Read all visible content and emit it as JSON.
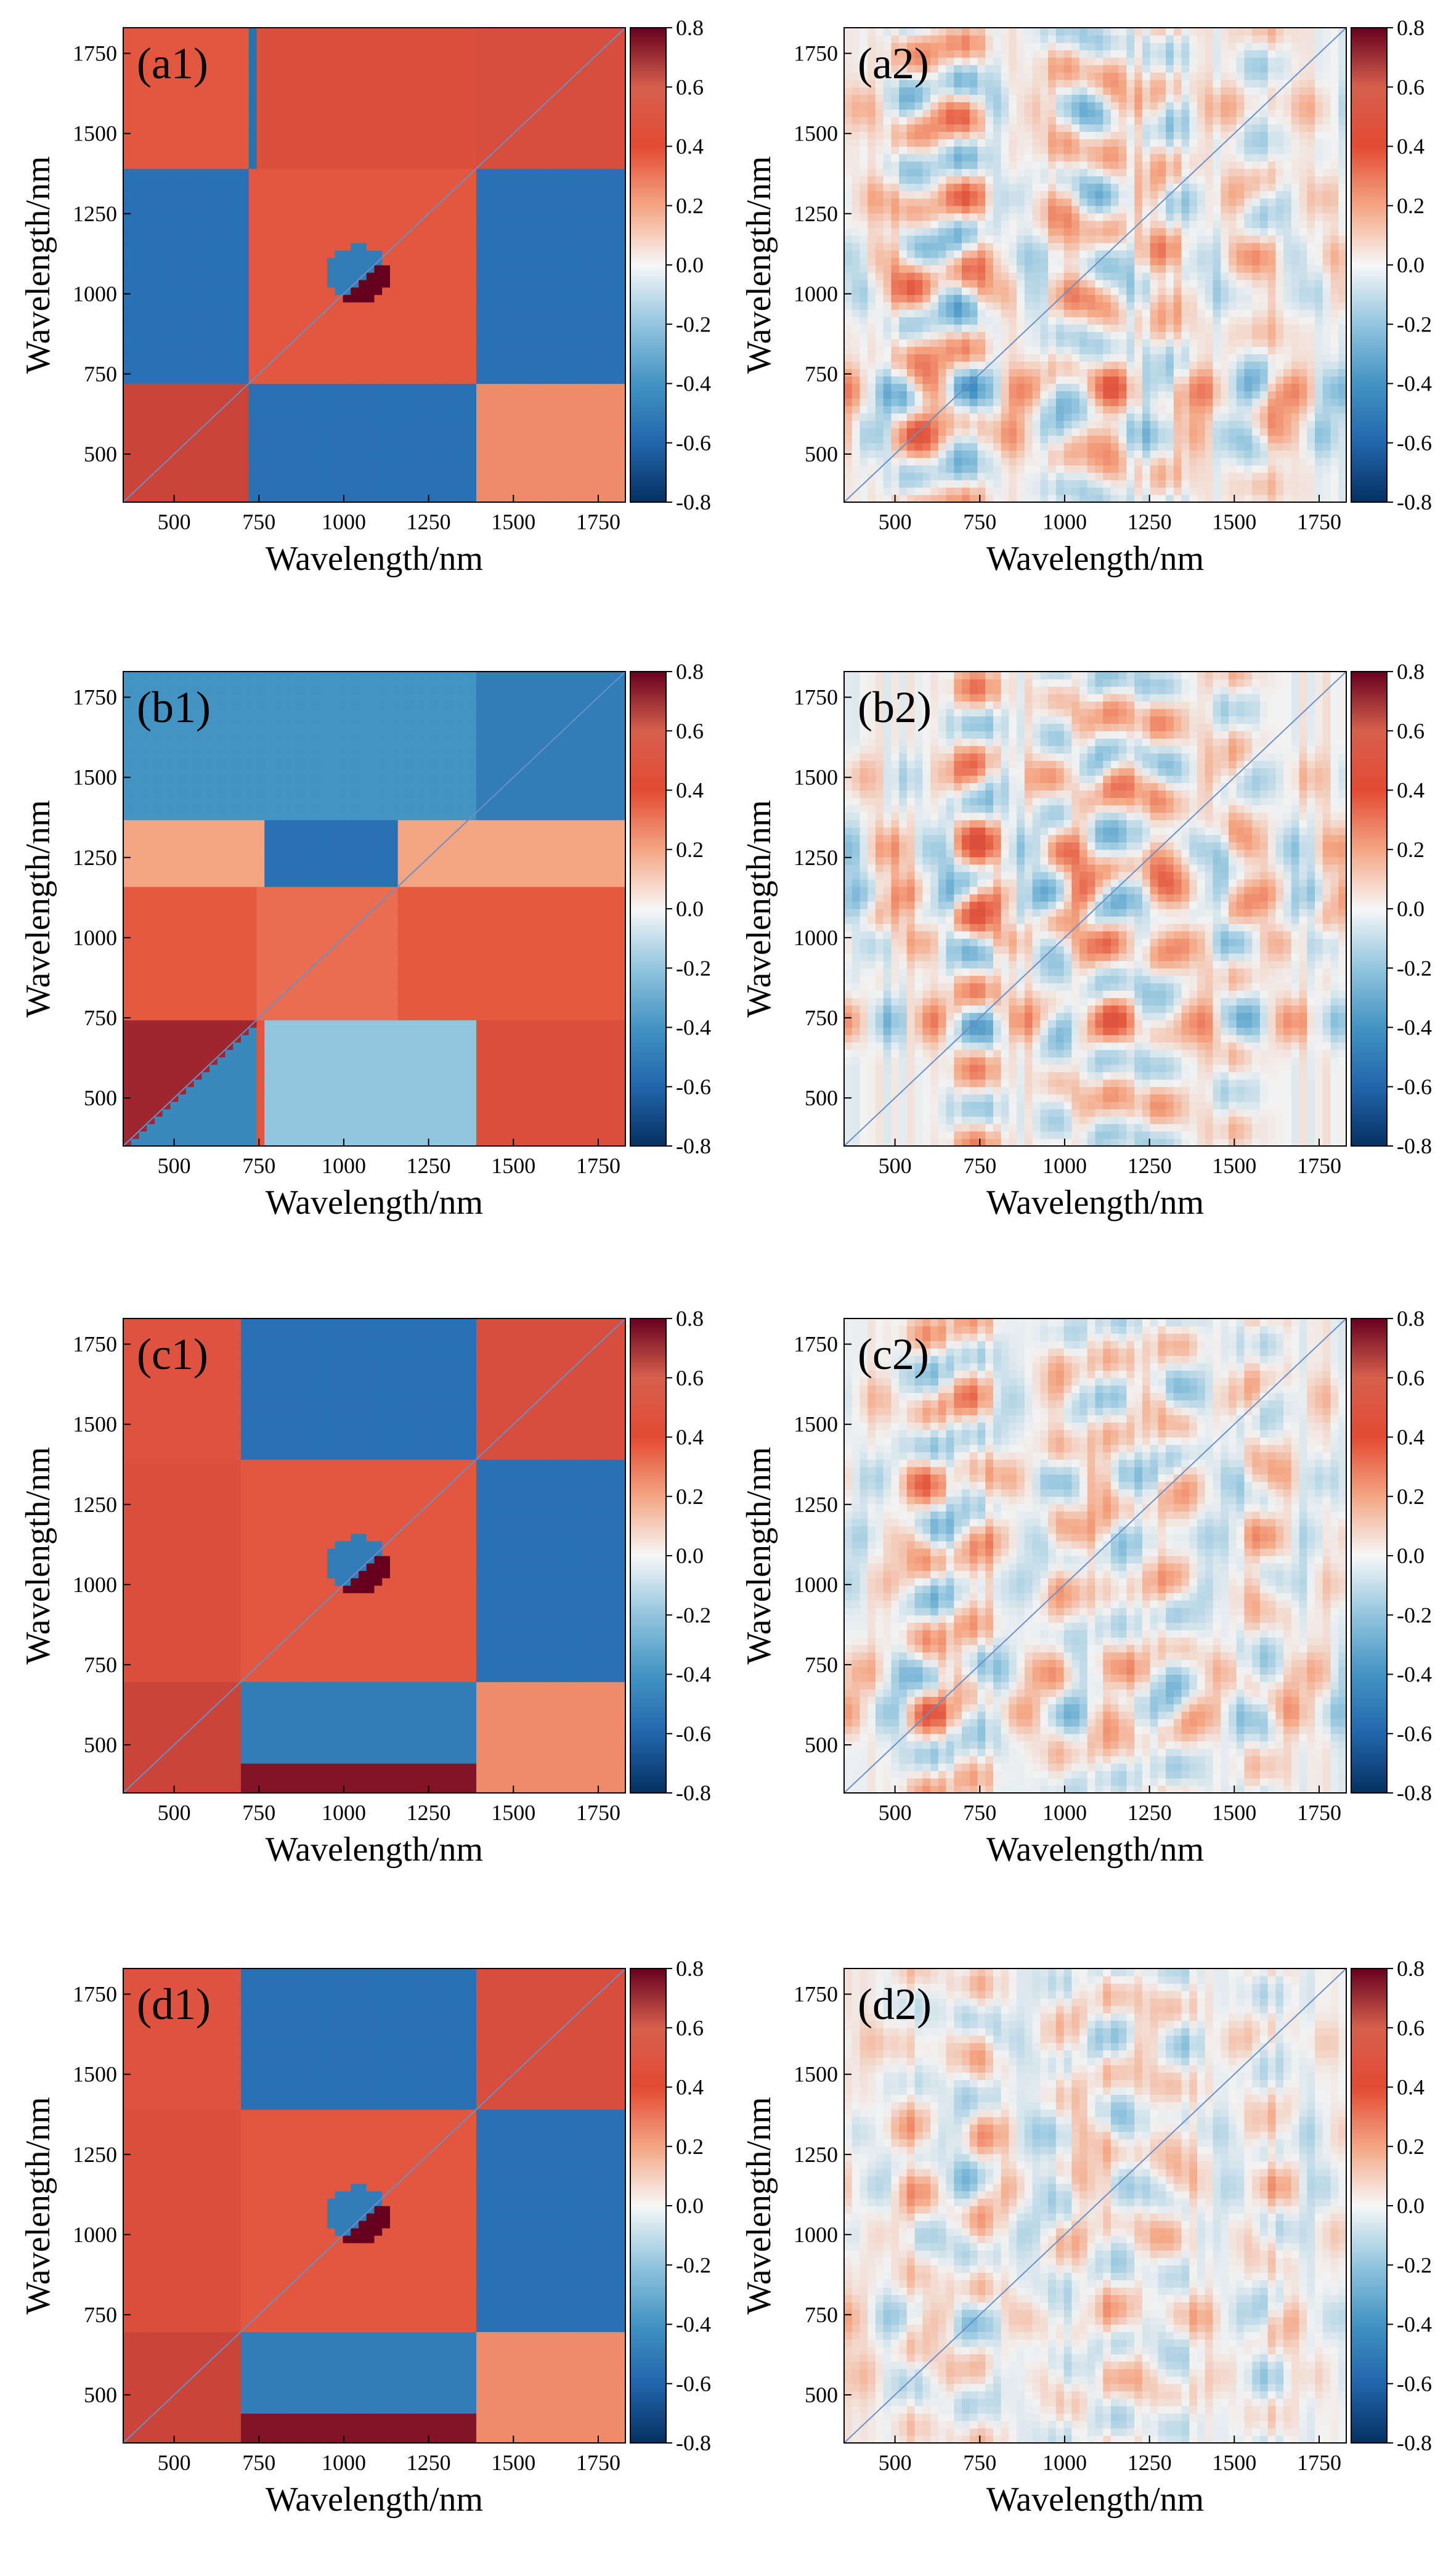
{
  "chart_data": [
    {
      "type": "heatmap",
      "panel_label": "(a1)",
      "xlabel": "Wavelength/nm",
      "ylabel": "Wavelength/nm",
      "xlim": [
        350,
        1830
      ],
      "ylim": [
        350,
        1830
      ],
      "xticks": [
        500,
        750,
        1000,
        1250,
        1500,
        1750
      ],
      "yticks": [
        500,
        750,
        1000,
        1250,
        1500,
        1750
      ],
      "colorbar": {
        "min": -0.8,
        "max": 0.8,
        "ticks": [
          "0.8",
          "0.6",
          "0.4",
          "0.2",
          "0.0",
          "-0.2",
          "-0.4",
          "-0.6",
          "-0.8"
        ]
      },
      "pattern": "sync-a",
      "blocks": [
        [
          0.5,
          1.0,
          350,
          720
        ],
        [
          -0.6,
          0.72,
          720,
          1380
        ],
        [
          0.3,
          0.92,
          1380,
          1830
        ]
      ]
    },
    {
      "type": "heatmap",
      "panel_label": "(a2)",
      "xlabel": "Wavelength/nm",
      "ylabel": "Wavelength/nm",
      "xlim": [
        350,
        1830
      ],
      "ylim": [
        350,
        1830
      ],
      "xticks": [
        500,
        750,
        1000,
        1250,
        1500,
        1750
      ],
      "yticks": [
        500,
        750,
        1000,
        1250,
        1500,
        1750
      ],
      "colorbar": {
        "min": -0.8,
        "max": 0.8,
        "ticks": [
          "0.8",
          "0.6",
          "0.4",
          "0.2",
          "0.0",
          "-0.2",
          "-0.4",
          "-0.6",
          "-0.8"
        ]
      },
      "pattern": "async",
      "stripes": [
        [
          700,
          0.55
        ],
        [
          560,
          0.45
        ],
        [
          1000,
          0.35
        ],
        [
          1120,
          0.35
        ],
        [
          1300,
          0.3
        ],
        [
          1580,
          0.3
        ]
      ]
    },
    {
      "type": "heatmap",
      "panel_label": "(b1)",
      "xlabel": "Wavelength/nm",
      "ylabel": "Wavelength/nm",
      "xlim": [
        350,
        1830
      ],
      "ylim": [
        350,
        1830
      ],
      "xticks": [
        500,
        750,
        1000,
        1250,
        1500,
        1750
      ],
      "yticks": [
        500,
        750,
        1000,
        1250,
        1500,
        1750
      ],
      "colorbar": {
        "min": -0.8,
        "max": 0.8,
        "ticks": [
          "0.8",
          "0.6",
          "0.4",
          "0.2",
          "0.0",
          "-0.2",
          "-0.4",
          "-0.6",
          "-0.8"
        ]
      },
      "pattern": "sync-b",
      "bands": [
        [
          350,
          740,
          0.45
        ],
        [
          740,
          1160,
          0.4
        ],
        [
          1160,
          1360,
          0.2
        ],
        [
          1360,
          1830,
          -0.4
        ]
      ]
    },
    {
      "type": "heatmap",
      "panel_label": "(b2)",
      "xlabel": "Wavelength/nm",
      "ylabel": "Wavelength/nm",
      "xlim": [
        350,
        1830
      ],
      "ylim": [
        350,
        1830
      ],
      "xticks": [
        500,
        750,
        1000,
        1250,
        1500,
        1750
      ],
      "yticks": [
        500,
        750,
        1000,
        1250,
        1500,
        1750
      ],
      "colorbar": {
        "min": -0.8,
        "max": 0.8,
        "ticks": [
          "0.8",
          "0.6",
          "0.4",
          "0.2",
          "0.0",
          "-0.2",
          "-0.4",
          "-0.6",
          "-0.8"
        ]
      },
      "pattern": "async",
      "stripes": [
        [
          740,
          0.55
        ],
        [
          1000,
          0.5
        ],
        [
          1130,
          0.5
        ],
        [
          1280,
          0.45
        ],
        [
          1050,
          0.4
        ],
        [
          1500,
          0.3
        ]
      ]
    },
    {
      "type": "heatmap",
      "panel_label": "(c1)",
      "xlabel": "Wavelength/nm",
      "ylabel": "Wavelength/nm",
      "xlim": [
        350,
        1830
      ],
      "ylim": [
        350,
        1830
      ],
      "xticks": [
        500,
        750,
        1000,
        1250,
        1500,
        1750
      ],
      "yticks": [
        500,
        750,
        1000,
        1250,
        1500,
        1750
      ],
      "colorbar": {
        "min": -0.8,
        "max": 0.8,
        "ticks": [
          "0.8",
          "0.6",
          "0.4",
          "0.2",
          "0.0",
          "-0.2",
          "-0.4",
          "-0.6",
          "-0.8"
        ]
      },
      "pattern": "sync-c",
      "blocks": [
        [
          0.55,
          1.0,
          350,
          700
        ],
        [
          -0.6,
          0.72,
          700,
          1380
        ],
        [
          0.3,
          0.92,
          1380,
          1830
        ]
      ]
    },
    {
      "type": "heatmap",
      "panel_label": "(c2)",
      "xlabel": "Wavelength/nm",
      "ylabel": "Wavelength/nm",
      "xlim": [
        350,
        1830
      ],
      "ylim": [
        350,
        1830
      ],
      "xticks": [
        500,
        750,
        1000,
        1250,
        1500,
        1750
      ],
      "yticks": [
        500,
        750,
        1000,
        1250,
        1500,
        1750
      ],
      "colorbar": {
        "min": -0.8,
        "max": 0.8,
        "ticks": [
          "0.8",
          "0.6",
          "0.4",
          "0.2",
          "0.0",
          "-0.2",
          "-0.4",
          "-0.6",
          "-0.8"
        ]
      },
      "pattern": "async",
      "stripes": [
        [
          600,
          0.45
        ],
        [
          1330,
          0.35
        ],
        [
          1150,
          0.3
        ],
        [
          1000,
          0.25
        ],
        [
          1580,
          0.25
        ],
        [
          730,
          0.35
        ]
      ]
    },
    {
      "type": "heatmap",
      "panel_label": "(d1)",
      "xlabel": "Wavelength/nm",
      "ylabel": "Wavelength/nm",
      "xlim": [
        350,
        1830
      ],
      "ylim": [
        350,
        1830
      ],
      "xticks": [
        500,
        750,
        1000,
        1250,
        1500,
        1750
      ],
      "yticks": [
        500,
        750,
        1000,
        1250,
        1500,
        1750
      ],
      "colorbar": {
        "min": -0.8,
        "max": 0.8,
        "ticks": [
          "0.8",
          "0.6",
          "0.4",
          "0.2",
          "0.0",
          "-0.2",
          "-0.4",
          "-0.6",
          "-0.8"
        ]
      },
      "pattern": "sync-d",
      "blocks": [
        [
          0.55,
          1.0,
          350,
          700
        ],
        [
          -0.5,
          0.72,
          700,
          1380
        ],
        [
          0.3,
          0.92,
          1380,
          1830
        ]
      ]
    },
    {
      "type": "heatmap",
      "panel_label": "(d2)",
      "xlabel": "Wavelength/nm",
      "ylabel": "Wavelength/nm",
      "xlim": [
        350,
        1830
      ],
      "ylim": [
        350,
        1830
      ],
      "xticks": [
        500,
        750,
        1000,
        1250,
        1500,
        1750
      ],
      "yticks": [
        500,
        750,
        1000,
        1250,
        1500,
        1750
      ],
      "colorbar": {
        "min": -0.8,
        "max": 0.8,
        "ticks": [
          "0.8",
          "0.6",
          "0.4",
          "0.2",
          "0.0",
          "-0.2",
          "-0.4",
          "-0.6",
          "-0.8"
        ]
      },
      "pattern": "async",
      "stripes": [
        [
          740,
          0.3
        ],
        [
          1150,
          0.3
        ],
        [
          1320,
          0.25
        ],
        [
          1000,
          0.2
        ],
        [
          1600,
          0.2
        ],
        [
          560,
          0.2
        ]
      ]
    }
  ]
}
